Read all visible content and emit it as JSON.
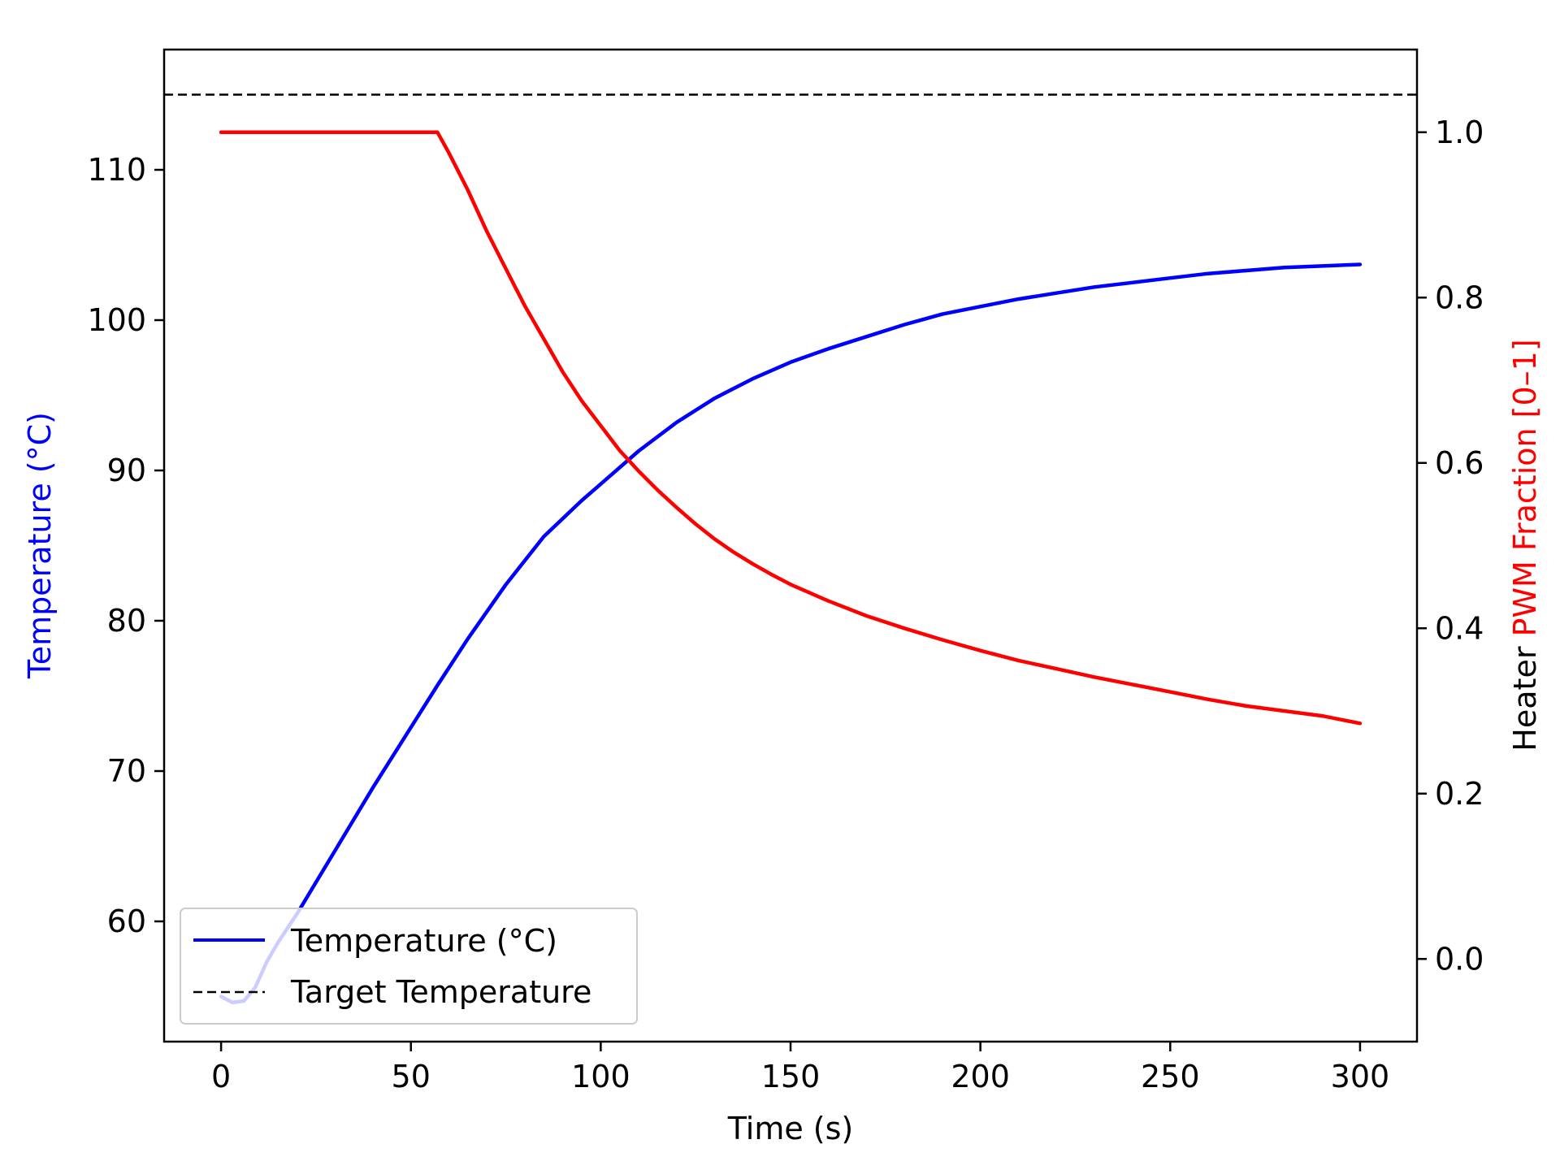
{
  "chart_data": {
    "type": "line",
    "title": "",
    "xlabel": "Time (s)",
    "ylabel_left": "Temperature (°C)",
    "ylabel_right": "Heater PWM Fraction [0–1]",
    "xlim": [
      -15,
      315
    ],
    "ylim_left": [
      52,
      118
    ],
    "ylim_right": [
      -0.1,
      1.1
    ],
    "x_ticks": [
      0,
      50,
      100,
      150,
      200,
      250,
      300
    ],
    "x_tick_labels": [
      "0",
      "50",
      "100",
      "150",
      "200",
      "250",
      "300"
    ],
    "y_left_ticks": [
      60,
      70,
      80,
      90,
      100,
      110
    ],
    "y_left_tick_labels": [
      "60",
      "70",
      "80",
      "90",
      "100",
      "110"
    ],
    "y_right_ticks": [
      0.0,
      0.2,
      0.4,
      0.6,
      0.8,
      1.0
    ],
    "y_right_tick_labels": [
      "0.0",
      "0.2",
      "0.4",
      "0.6",
      "0.8",
      "1.0"
    ],
    "grid": false,
    "legend_position": "lower-left",
    "legend": [
      {
        "label": "Temperature (°C)",
        "style": "solid",
        "color": "#0000ff"
      },
      {
        "label": "Target Temperature",
        "style": "dashed",
        "color": "#000000"
      }
    ],
    "colors": {
      "temperature": "#0000ff",
      "pwm": "#ff0000",
      "target": "#000000",
      "left_axis_label": "#0000ff",
      "right_axis_label": "#ff0000"
    },
    "target_temperature": 115,
    "series": [
      {
        "name": "Temperature (°C)",
        "axis": "left",
        "x": [
          0,
          3,
          6,
          9,
          12,
          15,
          20,
          25,
          30,
          40,
          50,
          57,
          65,
          75,
          85,
          95,
          100,
          110,
          120,
          130,
          140,
          150,
          160,
          170,
          180,
          190,
          200,
          210,
          220,
          230,
          240,
          250,
          260,
          270,
          280,
          290,
          300
        ],
        "y": [
          55,
          54.6,
          54.7,
          55.6,
          57.3,
          58.6,
          60.5,
          62.6,
          64.7,
          68.9,
          72.9,
          75.7,
          78.8,
          82.4,
          85.6,
          88.0,
          89.1,
          91.3,
          93.2,
          94.8,
          96.1,
          97.2,
          98.1,
          98.9,
          99.7,
          100.4,
          100.9,
          101.4,
          101.8,
          102.2,
          102.5,
          102.8,
          103.1,
          103.3,
          103.5,
          103.6,
          103.7
        ]
      },
      {
        "name": "Heater PWM Fraction [0–1]",
        "axis": "right",
        "x": [
          0,
          56,
          57,
          60,
          65,
          70,
          75,
          80,
          85,
          90,
          95,
          100,
          105,
          110,
          115,
          120,
          125,
          130,
          135,
          140,
          145,
          150,
          160,
          170,
          180,
          190,
          200,
          210,
          220,
          230,
          240,
          250,
          260,
          270,
          280,
          290,
          300
        ],
        "y": [
          1.0,
          1.0,
          1.0,
          0.975,
          0.93,
          0.88,
          0.835,
          0.79,
          0.75,
          0.71,
          0.675,
          0.645,
          0.615,
          0.59,
          0.567,
          0.546,
          0.526,
          0.508,
          0.492,
          0.478,
          0.465,
          0.453,
          0.433,
          0.415,
          0.4,
          0.386,
          0.373,
          0.361,
          0.351,
          0.341,
          0.332,
          0.323,
          0.314,
          0.306,
          0.3,
          0.294,
          0.285
        ]
      }
    ]
  }
}
